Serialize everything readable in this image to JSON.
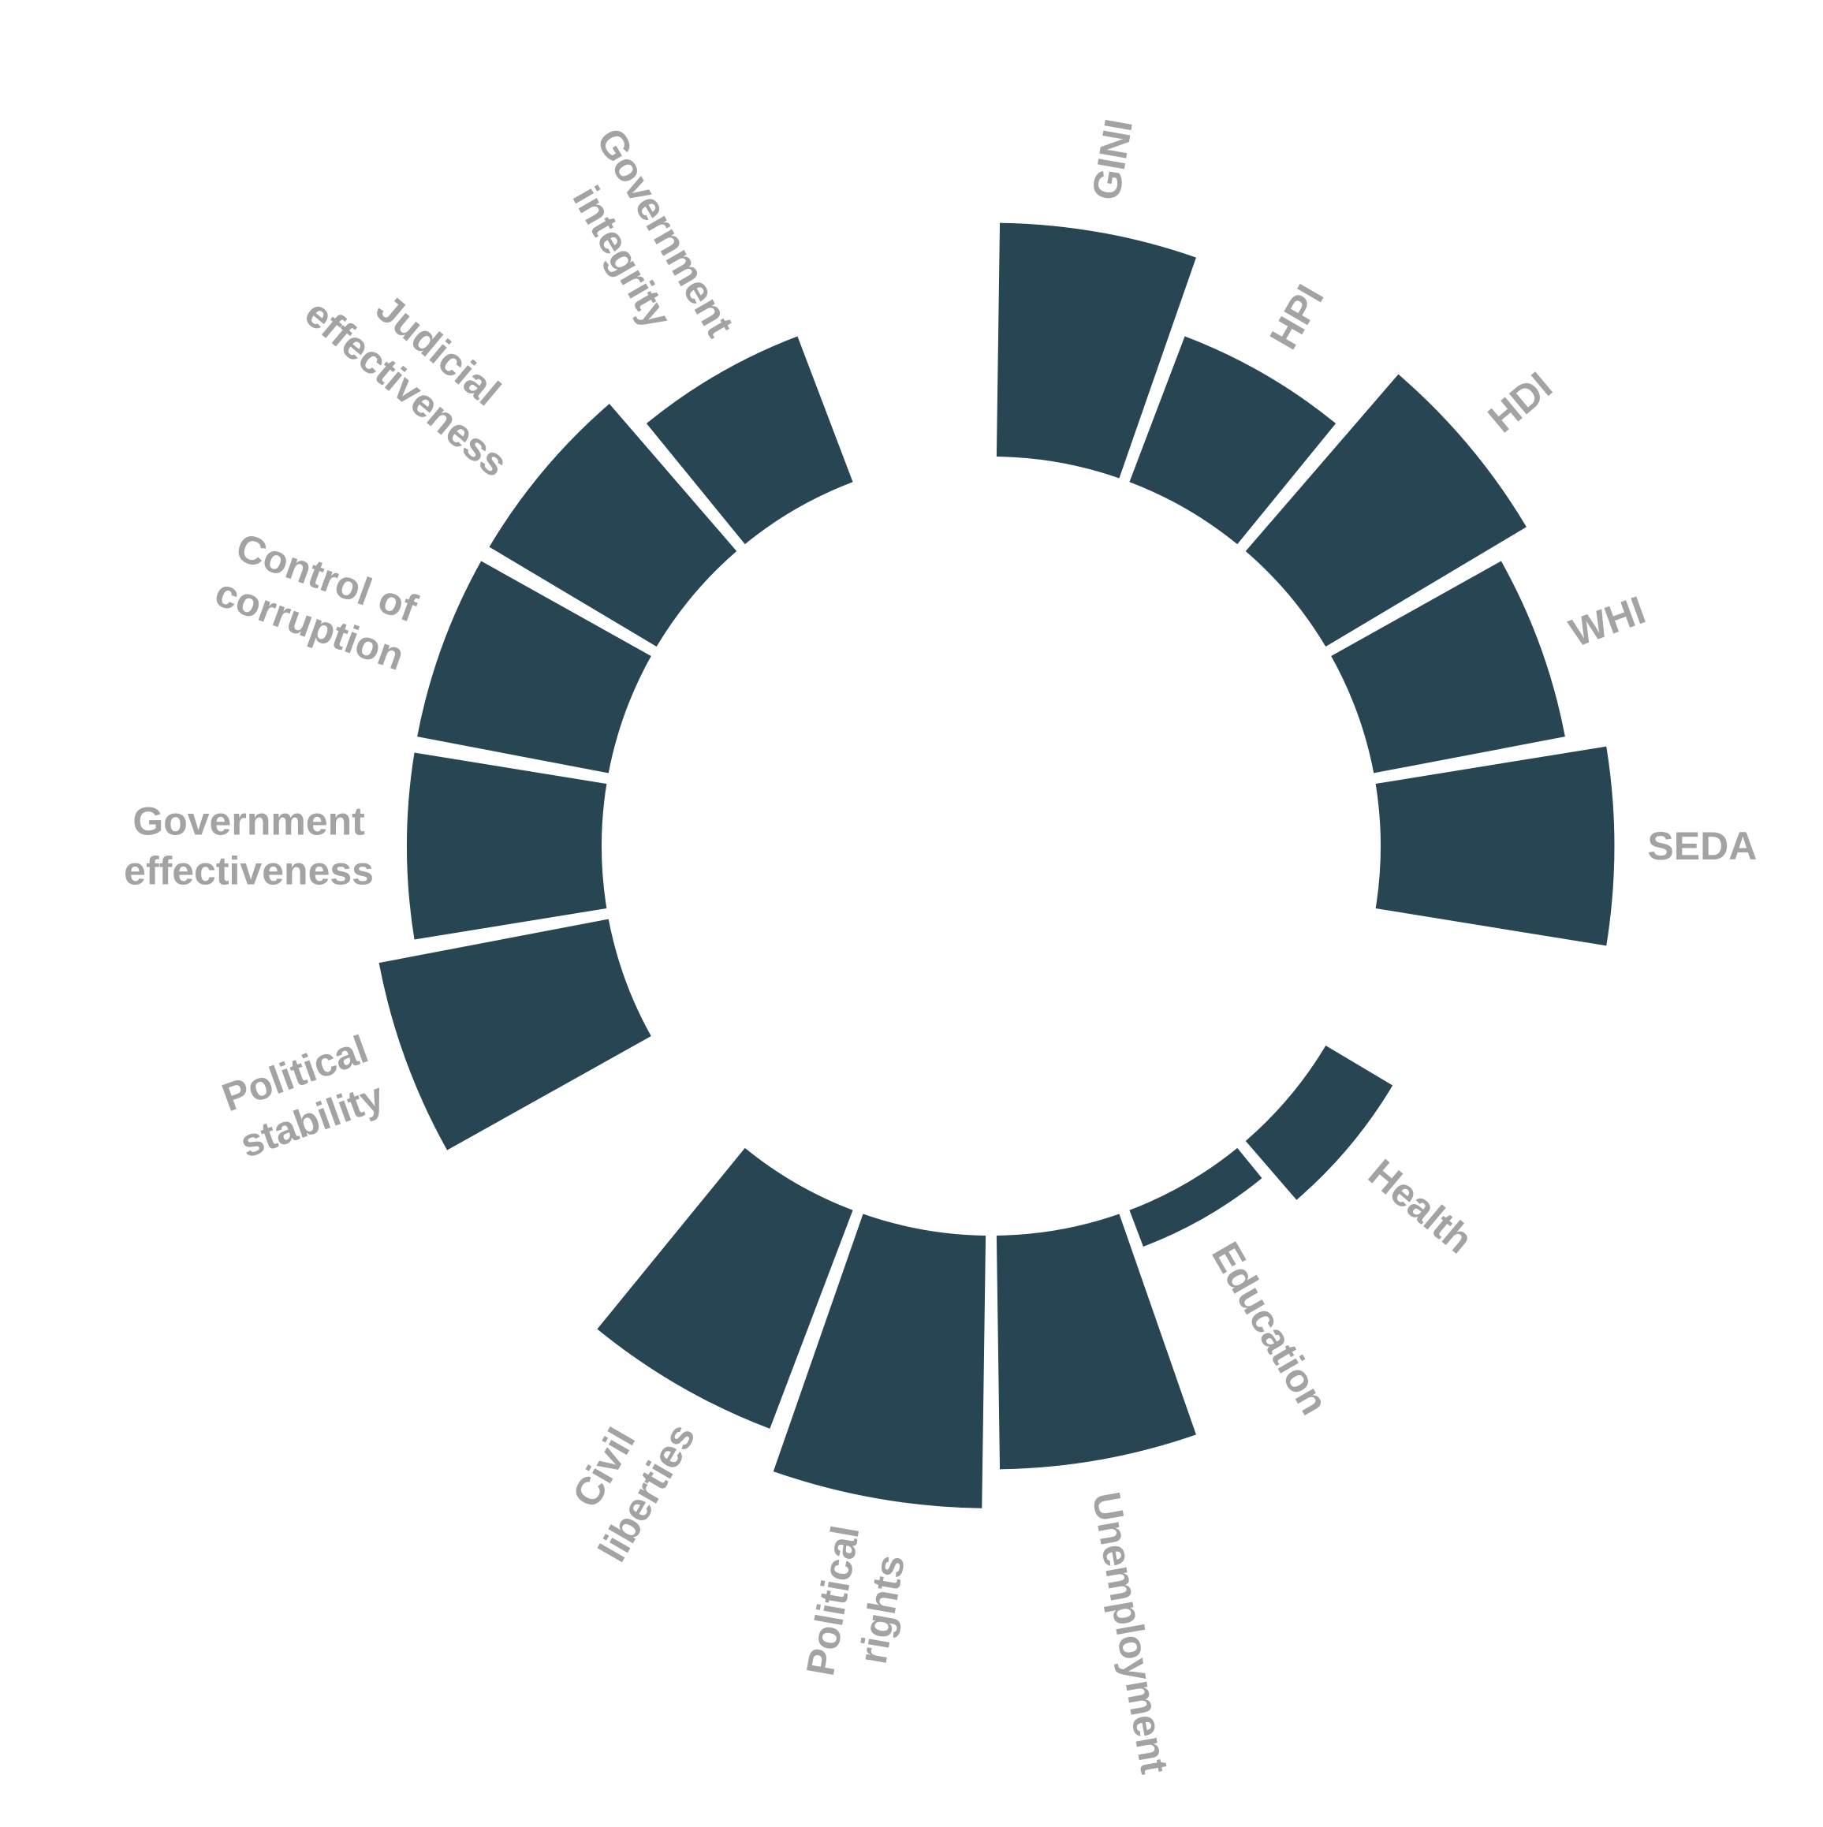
{
  "chart_data": {
    "type": "radial_bar",
    "categories": [
      "GINI",
      "HPI",
      "HDI",
      "WHI",
      "SEDA",
      null,
      "Health",
      "Education",
      "Unemployment",
      "Political\nrights",
      "Civil\nliberties",
      null,
      "Political\nstability",
      "Government\neffectiveness",
      "Control of\ncorruption",
      "Judicial\neffectiveness",
      "Government\nintegrity",
      null
    ],
    "values": [
      6,
      4,
      6,
      5,
      6,
      null,
      2,
      1,
      6,
      7,
      6,
      null,
      6,
      5,
      5,
      5,
      4,
      null
    ],
    "color": "#284554"
  }
}
